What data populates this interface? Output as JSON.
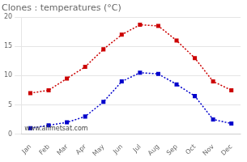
{
  "chart_data": {
    "type": "line",
    "title": "Clones : temperatures (°C)",
    "categories": [
      "Jan",
      "Feb",
      "Mar",
      "Apr",
      "May",
      "Jun",
      "Jul",
      "Aug",
      "Sep",
      "Oct",
      "Nov",
      "Dec"
    ],
    "series": [
      {
        "color": "#cc0000",
        "marker": "square",
        "line_style": "dotted",
        "values": [
          7.0,
          7.5,
          9.5,
          11.5,
          14.5,
          17.0,
          18.7,
          18.5,
          16.0,
          13.0,
          9.0,
          7.5
        ]
      },
      {
        "color": "#0000cc",
        "marker": "square",
        "line_style": "dotted",
        "values": [
          1.0,
          1.5,
          2.0,
          3.0,
          5.5,
          9.0,
          10.5,
          10.3,
          8.5,
          6.5,
          2.5,
          1.8
        ]
      }
    ],
    "ylim": [
      0,
      20
    ],
    "yticks": [
      0,
      5,
      10,
      15,
      20
    ],
    "grid": "y",
    "annotations": [
      "www.allmetsat.com"
    ]
  }
}
